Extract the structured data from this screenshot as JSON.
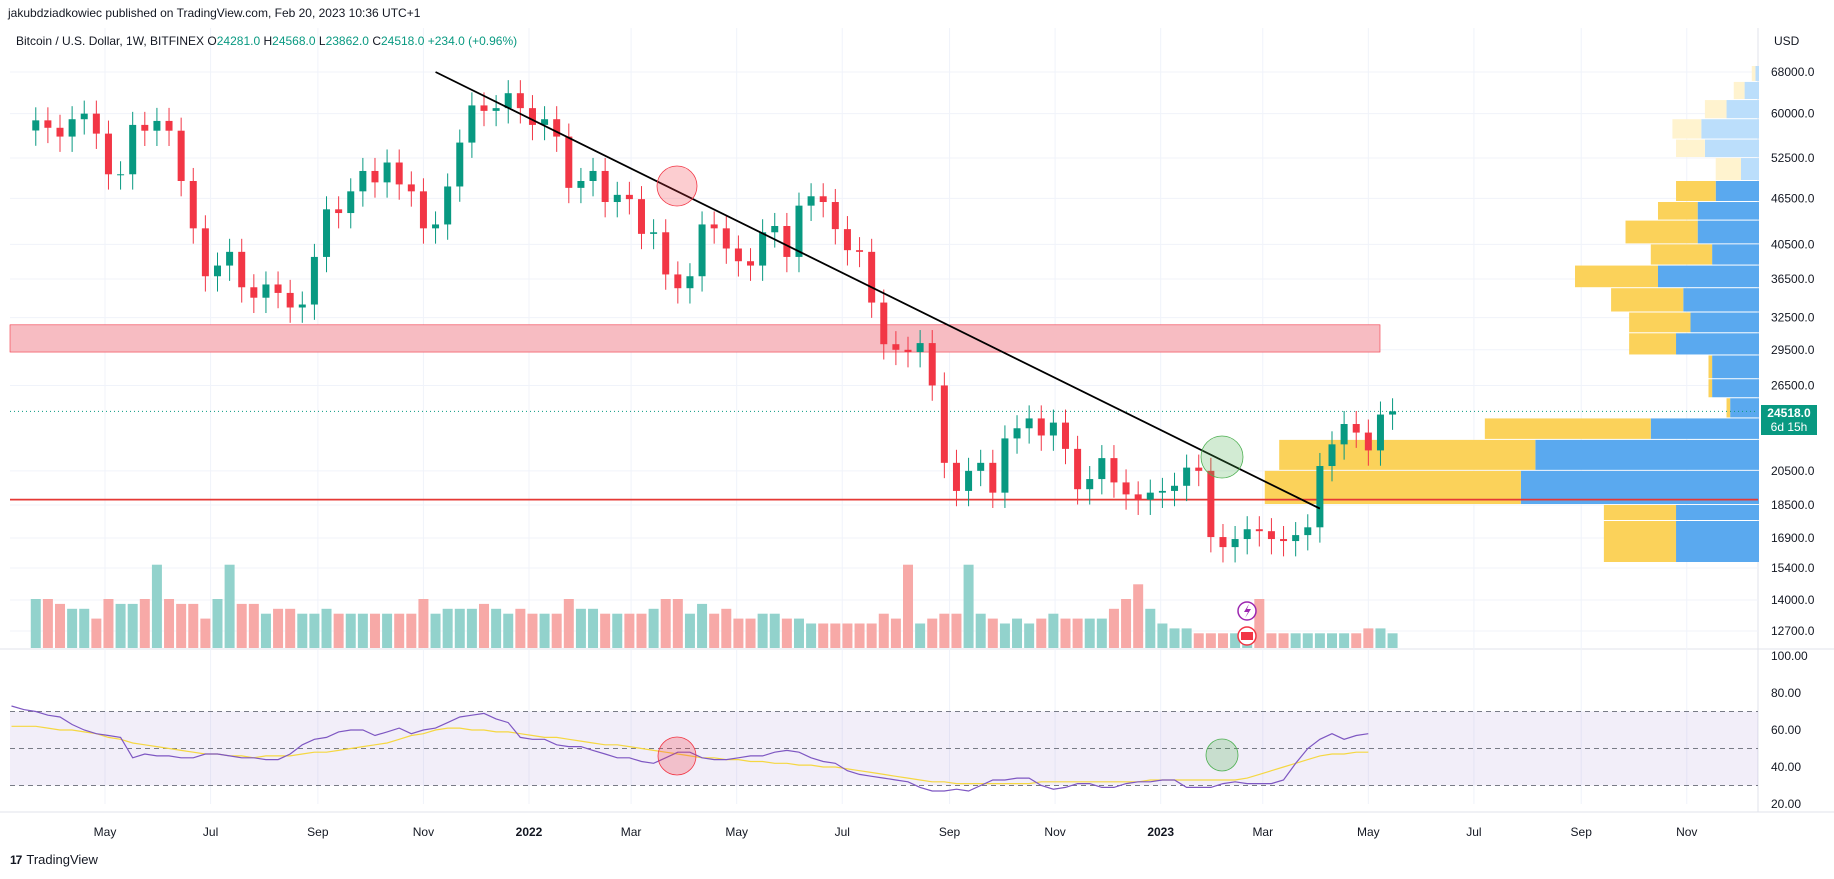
{
  "header": {
    "publisher": "jakubdziadkowiec published on TradingView.com, Feb 20, 2023 10:36 UTC+1"
  },
  "legend": {
    "symbol": "Bitcoin / U.S. Dollar, 1W, BITFINEX",
    "open_label": "O",
    "open": "24281.0",
    "high_label": "H",
    "high": "24568.0",
    "low_label": "L",
    "low": "23862.0",
    "close_label": "C",
    "close": "24518.0",
    "change": "+234.0 (+0.96%)"
  },
  "price_tag": {
    "price": "24518.0",
    "countdown": "6d 15h"
  },
  "footer": {
    "logo_glyph": "17",
    "brand": "TradingView"
  },
  "colors": {
    "up": "#089981",
    "down": "#f23645",
    "rsi": "#7e57c2",
    "rsi_ma": "#f5d742",
    "trendline": "#000000",
    "support": "#e53935"
  },
  "chart_data": {
    "type": "candlestick",
    "y_axis": {
      "currency_label": "USD",
      "scale": "log",
      "tick_labels": [
        "68000.0",
        "60000.0",
        "52500.0",
        "46500.0",
        "40500.0",
        "36500.0",
        "32500.0",
        "29500.0",
        "26500.0",
        "20500.0",
        "18500.0",
        "16900.0",
        "15400.0",
        "14000.0",
        "12700.0"
      ]
    },
    "x_axis": {
      "tick_labels": [
        "May",
        "Jul",
        "Sep",
        "Nov",
        "2022",
        "Mar",
        "May",
        "Jul",
        "Sep",
        "Nov",
        "2023",
        "Mar",
        "May",
        "Jul",
        "Sep",
        "Nov"
      ],
      "bold_labels": [
        "2022",
        "2023"
      ]
    },
    "candles_weekly_close": [
      58800,
      57500,
      56000,
      59000,
      60000,
      56500,
      50000,
      50000,
      58000,
      57000,
      58700,
      57000,
      49000,
      42500,
      36800,
      38000,
      39600,
      35600,
      34500,
      35900,
      35000,
      33500,
      33800,
      39000,
      45000,
      44500,
      47500,
      50500,
      48800,
      51800,
      48500,
      47500,
      42500,
      43000,
      48200,
      55000,
      61500,
      60500,
      61000,
      63800,
      61000,
      58000,
      59000,
      56000,
      48000,
      49000,
      50500,
      46000,
      47000,
      46400,
      41800,
      42000,
      37000,
      35500,
      36800,
      43000,
      42500,
      40000,
      38500,
      38000,
      42000,
      42800,
      39000,
      45500,
      46800,
      46000,
      42400,
      39800,
      39600,
      34000,
      30000,
      29500,
      29300,
      30100,
      26500,
      21000,
      19300,
      20500,
      21000,
      19200,
      22600,
      23300,
      24000,
      22800,
      23700,
      21900,
      19400,
      20000,
      21300,
      19800,
      19100,
      18800,
      19200,
      19300,
      19600,
      20700,
      20500,
      16800,
      16300,
      16700,
      17200,
      17100,
      16700,
      16600,
      16900,
      17300,
      20800,
      22200,
      23600,
      23000,
      21800,
      24281,
      24518
    ],
    "trendline": {
      "from": {
        "date": "2021-11-08",
        "price": 68000
      },
      "to": {
        "date": "2023-04-03",
        "price": 18300
      }
    },
    "resistance_zone": [
      29300,
      31800
    ],
    "support_line": 18800,
    "current_price": 24518,
    "volume_profile_rows": [
      {
        "price_low": 66000,
        "up": 1,
        "down": 1
      },
      {
        "price_low": 62500,
        "up": 3,
        "down": 4
      },
      {
        "price_low": 59000,
        "up": 6,
        "down": 9
      },
      {
        "price_low": 55500,
        "up": 8,
        "down": 16
      },
      {
        "price_low": 52500,
        "up": 8,
        "down": 15
      },
      {
        "price_low": 49000,
        "up": 7,
        "down": 5
      },
      {
        "price_low": 46000,
        "up": 11,
        "down": 12
      },
      {
        "price_low": 43500,
        "up": 11,
        "down": 17
      },
      {
        "price_low": 40500,
        "up": 20,
        "down": 17
      },
      {
        "price_low": 38000,
        "up": 17,
        "down": 13
      },
      {
        "price_low": 35500,
        "up": 23,
        "down": 28
      },
      {
        "price_low": 33000,
        "up": 20,
        "down": 21
      },
      {
        "price_low": 31000,
        "up": 17,
        "down": 19
      },
      {
        "price_low": 29000,
        "up": 13,
        "down": 23
      },
      {
        "price_low": 27000,
        "up": 1,
        "down": 13
      },
      {
        "price_low": 25500,
        "up": 1,
        "down": 13
      },
      {
        "price_low": 24000,
        "up": 1,
        "down": 8
      },
      {
        "price_low": 22500,
        "up": 46,
        "down": 30
      },
      {
        "price_low": 20500,
        "up": 71,
        "down": 62
      },
      {
        "price_low": 18500,
        "up": 71,
        "down": 66
      },
      {
        "price_low": 17100,
        "up": 20,
        "down": 23
      },
      {
        "price_low": 15500,
        "up": 20,
        "down": 23
      }
    ],
    "volume_weeks": [
      10,
      10,
      9,
      8,
      8,
      6,
      10,
      9,
      9,
      10,
      17,
      10,
      9,
      9,
      6,
      10,
      17,
      9,
      9,
      7,
      8,
      8,
      7,
      7,
      8,
      7,
      7,
      7,
      7,
      7,
      7,
      7,
      10,
      7,
      8,
      8,
      8,
      9,
      8,
      7,
      8,
      7,
      7,
      7,
      10,
      8,
      8,
      7,
      7,
      7,
      7,
      8,
      10,
      10,
      7,
      9,
      7,
      8,
      6,
      6,
      7,
      7,
      6,
      6,
      5,
      5,
      5,
      5,
      5,
      5,
      7,
      6,
      17,
      5,
      6,
      7,
      7,
      17,
      7,
      6,
      5,
      6,
      5,
      6,
      7,
      6,
      6,
      6,
      6,
      8,
      10,
      13,
      8,
      5,
      4,
      4,
      3,
      3,
      3,
      3,
      3,
      10,
      3,
      3,
      3,
      3,
      3,
      3,
      3,
      3,
      4,
      4,
      3,
      3,
      3,
      3
    ],
    "rsi": {
      "ylim": [
        20,
        100
      ],
      "tick_labels": [
        "100.00",
        "80.00",
        "60.00",
        "40.00",
        "20.00"
      ],
      "bands": [
        70,
        50,
        30
      ],
      "values": [
        73,
        71,
        70,
        68,
        67,
        63,
        60,
        58,
        57,
        56,
        45,
        47,
        46,
        46,
        45,
        45,
        47,
        47,
        46,
        45,
        45,
        44,
        44,
        47,
        52,
        55,
        56,
        59,
        60,
        60,
        57,
        59,
        61,
        58,
        60,
        61,
        64,
        67,
        68,
        69,
        66,
        64,
        56,
        55,
        55,
        52,
        51,
        51,
        49,
        47,
        45,
        45,
        43,
        42,
        45,
        48,
        48,
        45,
        44,
        44,
        45,
        46,
        46,
        48,
        49,
        48,
        45,
        43,
        42,
        38,
        36,
        35,
        34,
        33,
        32,
        29,
        27,
        27,
        28,
        27,
        30,
        33,
        33,
        34,
        34,
        30,
        28,
        29,
        31,
        31,
        29,
        29,
        31,
        32,
        32,
        33,
        33,
        29,
        29,
        29,
        31,
        32,
        31,
        31,
        31,
        33,
        42,
        50,
        55,
        58,
        55,
        57,
        58
      ],
      "ma_values": [
        62,
        62,
        62,
        61,
        60,
        60,
        59,
        58,
        56,
        55,
        53,
        52,
        51,
        50,
        49,
        48,
        47,
        47,
        46,
        46,
        45,
        46,
        46,
        46,
        47,
        48,
        48,
        49,
        50,
        51,
        52,
        53,
        55,
        57,
        58,
        60,
        61,
        61,
        60,
        60,
        59,
        59,
        58,
        57,
        56,
        56,
        55,
        54,
        53,
        52,
        52,
        51,
        50,
        49,
        48,
        47,
        46,
        45,
        45,
        44,
        44,
        43,
        43,
        42,
        42,
        41,
        41,
        40,
        40,
        39,
        38,
        37,
        36,
        35,
        34,
        33,
        32,
        32,
        31,
        31,
        31,
        31,
        31,
        31,
        31,
        32,
        32,
        32,
        32,
        32,
        32,
        32,
        32,
        32,
        33,
        33,
        33,
        33,
        33,
        33,
        33,
        33,
        34,
        36,
        38,
        40,
        42,
        44,
        46,
        47,
        47,
        48,
        48
      ]
    }
  }
}
